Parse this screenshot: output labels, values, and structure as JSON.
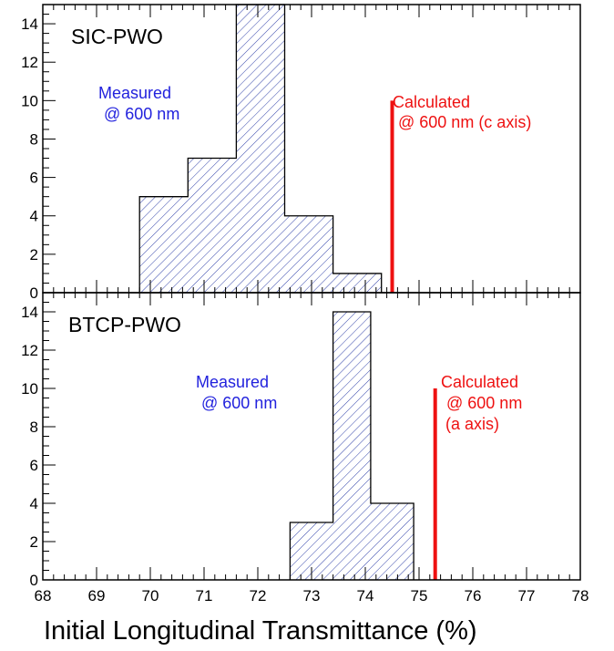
{
  "chart_data": {
    "type": "bar",
    "xlabel": "Initial Longitudinal Transmittance (%)",
    "xlim": [
      68,
      78
    ],
    "x_ticks": [
      68,
      69,
      70,
      71,
      72,
      73,
      74,
      75,
      76,
      77,
      78
    ],
    "colors": {
      "histogram": "#3344aa",
      "calculated": "#ee1111",
      "measured_text": "#2222dd"
    },
    "panels": [
      {
        "title": "SIC-PWO",
        "ylim": [
          0,
          15
        ],
        "y_ticks": [
          0,
          2,
          4,
          6,
          8,
          10,
          12,
          14
        ],
        "bins": [
          {
            "x0": 69.8,
            "x1": 70.7,
            "count": 5
          },
          {
            "x0": 70.7,
            "x1": 71.6,
            "count": 7
          },
          {
            "x0": 71.6,
            "x1": 72.5,
            "count": 15
          },
          {
            "x0": 72.5,
            "x1": 73.4,
            "count": 4
          },
          {
            "x0": 73.4,
            "x1": 74.3,
            "count": 1
          }
        ],
        "measured_label": [
          "Measured",
          "@ 600 nm"
        ],
        "calculated_value": 74.5,
        "calculated_height": 10,
        "calculated_label": [
          "Calculated",
          "@ 600 nm (c axis)"
        ]
      },
      {
        "title": "BTCP-PWO",
        "ylim": [
          0,
          15
        ],
        "y_ticks": [
          0,
          2,
          4,
          6,
          8,
          10,
          12,
          14
        ],
        "bins": [
          {
            "x0": 72.6,
            "x1": 73.4,
            "count": 3
          },
          {
            "x0": 73.4,
            "x1": 74.1,
            "count": 14
          },
          {
            "x0": 74.1,
            "x1": 74.9,
            "count": 4
          }
        ],
        "measured_label": [
          "Measured",
          "@ 600 nm"
        ],
        "calculated_value": 75.3,
        "calculated_height": 10,
        "calculated_label": [
          "Calculated",
          "@ 600 nm",
          "(a axis)"
        ]
      }
    ]
  }
}
